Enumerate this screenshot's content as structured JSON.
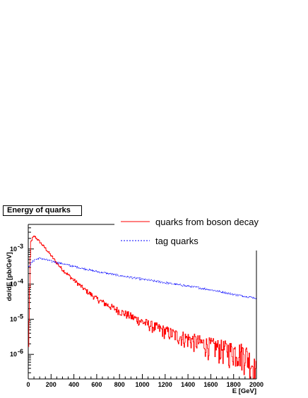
{
  "chart_data": {
    "type": "line",
    "title": "Energy of quarks",
    "xlabel": "E [GeV]",
    "ylabel": "dσ/dE [pb/GeV]",
    "xlim": [
      0,
      2000
    ],
    "ylim": [
      2e-07,
      0.005
    ],
    "yscale": "log",
    "grid": false,
    "legend_placement": "top-right",
    "x_ticks": [
      0,
      200,
      400,
      600,
      800,
      1000,
      1200,
      1400,
      1600,
      1800,
      2000
    ],
    "y_ticks": [
      {
        "value": 1e-06,
        "mantissa": "10",
        "exp": "-6"
      },
      {
        "value": 1e-05,
        "mantissa": "10",
        "exp": "-5"
      },
      {
        "value": 0.0001,
        "mantissa": "10",
        "exp": "-4"
      },
      {
        "value": 0.001,
        "mantissa": "10",
        "exp": "-3"
      }
    ],
    "series": [
      {
        "name": "quarks from boson decay",
        "color": "#ff0000",
        "style": "solid",
        "x": [
          0,
          20,
          40,
          55,
          80,
          100,
          150,
          200,
          250,
          300,
          400,
          500,
          600,
          700,
          800,
          900,
          1000,
          1100,
          1200,
          1300,
          1400,
          1500,
          1600,
          1700,
          1800,
          1900,
          2000
        ],
        "y": [
          5e-07,
          0.0015,
          0.0021,
          0.0023,
          0.0019,
          0.0016,
          0.00105,
          0.00065,
          0.0004,
          0.00026,
          0.00013,
          6.8e-05,
          3.8e-05,
          2.5e-05,
          1.7e-05,
          1.2e-05,
          8.5e-06,
          6.2e-06,
          4.6e-06,
          3.5e-06,
          2.8e-06,
          2.2e-06,
          1.8e-06,
          1.5e-06,
          1.3e-06,
          1.15e-06,
          3.5e-07
        ]
      },
      {
        "name": "tag quarks",
        "color": "#0000ff",
        "style": "dotted",
        "x": [
          0,
          30,
          60,
          100,
          150,
          200,
          300,
          400,
          500,
          600,
          700,
          800,
          900,
          1000,
          1100,
          1200,
          1300,
          1400,
          1500,
          1600,
          1700,
          1800,
          1900,
          2000
        ],
        "y": [
          0.0003,
          0.00042,
          0.0005,
          0.00054,
          0.0005,
          0.00045,
          0.00038,
          0.00032,
          0.00027,
          0.00023,
          0.0002,
          0.000175,
          0.000155,
          0.000138,
          0.000123,
          0.00011,
          9.8e-05,
          8.8e-05,
          7.8e-05,
          6.9e-05,
          6e-05,
          5.1e-05,
          4.5e-05,
          4e-05
        ]
      }
    ]
  }
}
